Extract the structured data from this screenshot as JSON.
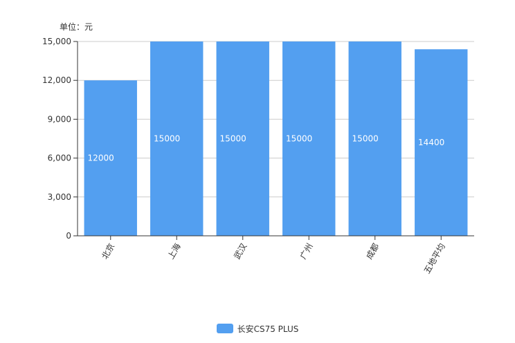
{
  "chart_data": {
    "type": "bar",
    "unit_label": "单位：元",
    "categories": [
      "北京",
      "上海",
      "武汉",
      "广州",
      "成都",
      "五地平均"
    ],
    "series": [
      {
        "name": "长安CS75 PLUS",
        "values": [
          12000,
          15000,
          15000,
          15000,
          15000,
          14400
        ],
        "color": "#539ff0"
      }
    ],
    "data_labels": [
      "12000",
      "15000",
      "15000",
      "15000",
      "15000",
      "14400"
    ],
    "ylim": [
      0,
      15000
    ],
    "yticks": [
      0,
      3000,
      6000,
      9000,
      12000,
      15000
    ],
    "ytick_labels": [
      "0",
      "3,000",
      "6,000",
      "9,000",
      "12,000",
      "15,000"
    ],
    "grid": true,
    "legend_position": "bottom-center"
  }
}
